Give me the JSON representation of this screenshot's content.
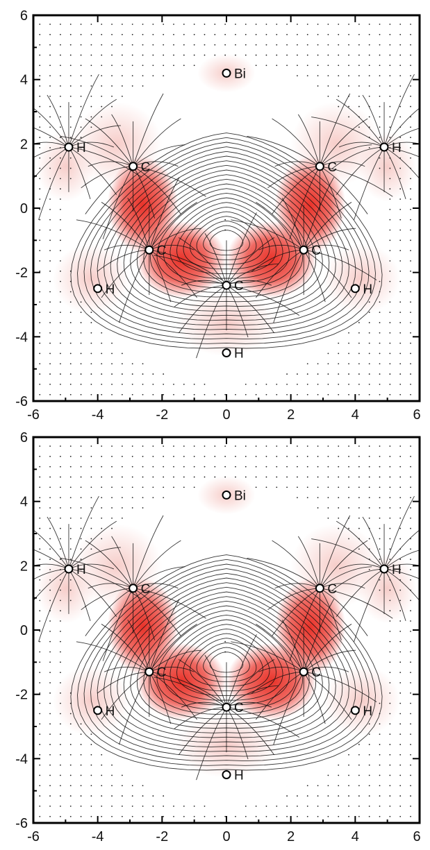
{
  "panels": [
    {
      "id": "top",
      "x_ticks": [
        "-6",
        "-4",
        "-2",
        "0",
        "2",
        "4",
        "6"
      ],
      "y_ticks": [
        "6",
        "4",
        "2",
        "0",
        "-2",
        "-4",
        "-6"
      ],
      "atoms": [
        {
          "label": "Bi",
          "x": 0,
          "y": 4.2
        },
        {
          "label": "H",
          "x": -4.9,
          "y": 1.9
        },
        {
          "label": "C",
          "x": -2.9,
          "y": 1.3
        },
        {
          "label": "C",
          "x": 2.9,
          "y": 1.3
        },
        {
          "label": "H",
          "x": 4.9,
          "y": 1.9
        },
        {
          "label": "C",
          "x": -2.4,
          "y": -1.3
        },
        {
          "label": "C",
          "x": 2.4,
          "y": -1.3
        },
        {
          "label": "H",
          "x": -4.0,
          "y": -2.5
        },
        {
          "label": "C",
          "x": 0,
          "y": -2.4
        },
        {
          "label": "H",
          "x": 4.0,
          "y": -2.5
        },
        {
          "label": "H",
          "x": 0,
          "y": -4.5
        }
      ]
    },
    {
      "id": "bottom",
      "x_ticks": [
        "-6",
        "-4",
        "-2",
        "0",
        "2",
        "4",
        "6"
      ],
      "y_ticks": [
        "6",
        "4",
        "2",
        "0",
        "-2",
        "-4",
        "-6"
      ],
      "atoms": [
        {
          "label": "Bi",
          "x": 0,
          "y": 4.2
        },
        {
          "label": "H",
          "x": -4.9,
          "y": 1.9
        },
        {
          "label": "C",
          "x": -2.9,
          "y": 1.3
        },
        {
          "label": "C",
          "x": 2.9,
          "y": 1.3
        },
        {
          "label": "H",
          "x": 4.9,
          "y": 1.9
        },
        {
          "label": "C",
          "x": -2.4,
          "y": -1.3
        },
        {
          "label": "C",
          "x": 2.4,
          "y": -1.3
        },
        {
          "label": "H",
          "x": -4.0,
          "y": -2.5
        },
        {
          "label": "C",
          "x": 0,
          "y": -2.4
        },
        {
          "label": "H",
          "x": 4.0,
          "y": -2.5
        },
        {
          "label": "H",
          "x": 0,
          "y": -4.5
        }
      ]
    }
  ],
  "axis_range": [
    -6,
    6
  ],
  "highlight_color": "#e8281e"
}
